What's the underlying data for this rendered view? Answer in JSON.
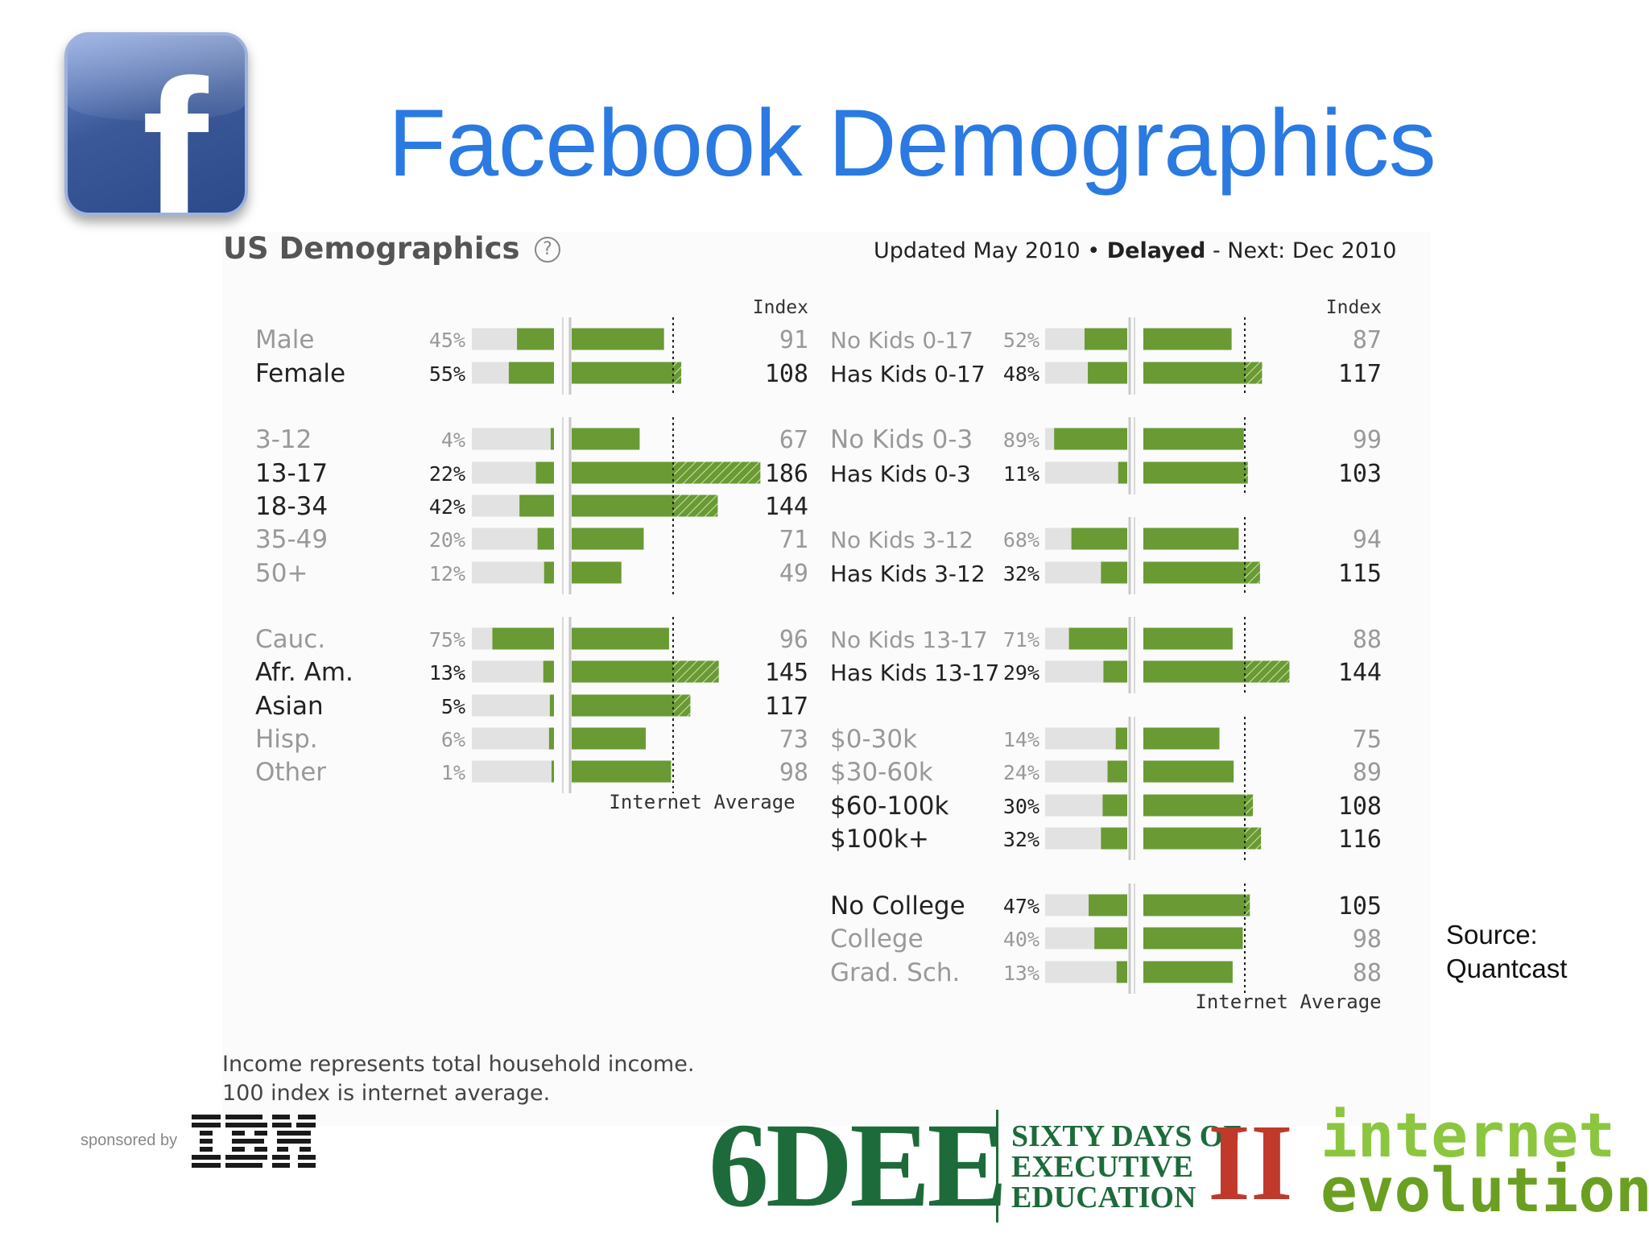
{
  "header": {
    "title": "Facebook Demographics",
    "logo_letter": "f",
    "logo_icon": "facebook-logo-icon"
  },
  "panel": {
    "title": "US Demographics",
    "help_icon": "question-circle-icon",
    "help_glyph": "?",
    "updated_prefix": "Updated May 2010 •",
    "updated_bold": "Delayed",
    "updated_suffix": "- Next: Dec 2010"
  },
  "labels": {
    "index": "Index",
    "internet_average": "Internet Average"
  },
  "colors": {
    "bar": "#6a9a33",
    "hatch": "#5a8a2a",
    "track": "#e2e2e2",
    "title": "#2a7ae2"
  },
  "chart_data": [
    {
      "type": "bar",
      "groups": [
        {
          "rows": [
            {
              "label": "Male",
              "pct": "45%",
              "index": 91,
              "emph": false
            },
            {
              "label": "Female",
              "pct": "55%",
              "index": 108,
              "emph": true
            }
          ]
        },
        {
          "rows": [
            {
              "label": "3-12",
              "pct": "4%",
              "index": 67,
              "emph": false
            },
            {
              "label": "13-17",
              "pct": "22%",
              "index": 186,
              "emph": true
            },
            {
              "label": "18-34",
              "pct": "42%",
              "index": 144,
              "emph": true
            },
            {
              "label": "35-49",
              "pct": "20%",
              "index": 71,
              "emph": false
            },
            {
              "label": "50+",
              "pct": "12%",
              "index": 49,
              "emph": false
            }
          ]
        },
        {
          "rows": [
            {
              "label": "Cauc.",
              "pct": "75%",
              "index": 96,
              "emph": false
            },
            {
              "label": "Afr. Am.",
              "pct": "13%",
              "index": 145,
              "emph": true
            },
            {
              "label": "Asian",
              "pct": "5%",
              "index": 117,
              "emph": true
            },
            {
              "label": "Hisp.",
              "pct": "6%",
              "index": 73,
              "emph": false
            },
            {
              "label": "Other",
              "pct": "1%",
              "index": 98,
              "emph": false
            }
          ]
        }
      ]
    },
    {
      "type": "bar",
      "groups": [
        {
          "rows": [
            {
              "label": "No Kids 0-17",
              "pct": "52%",
              "index": 87,
              "emph": false
            },
            {
              "label": "Has Kids 0-17",
              "pct": "48%",
              "index": 117,
              "emph": true
            }
          ]
        },
        {
          "rows": [
            {
              "label": "No Kids 0-3",
              "pct": "89%",
              "index": 99,
              "emph": false
            },
            {
              "label": "Has Kids 0-3",
              "pct": "11%",
              "index": 103,
              "emph": true
            }
          ]
        },
        {
          "rows": [
            {
              "label": "No Kids 3-12",
              "pct": "68%",
              "index": 94,
              "emph": false
            },
            {
              "label": "Has Kids 3-12",
              "pct": "32%",
              "index": 115,
              "emph": true
            }
          ]
        },
        {
          "rows": [
            {
              "label": "No Kids 13-17",
              "pct": "71%",
              "index": 88,
              "emph": false
            },
            {
              "label": "Has Kids 13-17",
              "pct": "29%",
              "index": 144,
              "emph": true
            }
          ]
        },
        {
          "rows": [
            {
              "label": "$0-30k",
              "pct": "14%",
              "index": 75,
              "emph": false
            },
            {
              "label": "$30-60k",
              "pct": "24%",
              "index": 89,
              "emph": false
            },
            {
              "label": "$60-100k",
              "pct": "30%",
              "index": 108,
              "emph": true
            },
            {
              "label": "$100k+",
              "pct": "32%",
              "index": 116,
              "emph": true
            }
          ]
        },
        {
          "rows": [
            {
              "label": "No College",
              "pct": "47%",
              "index": 105,
              "emph": true
            },
            {
              "label": "College",
              "pct": "40%",
              "index": 98,
              "emph": false
            },
            {
              "label": "Grad. Sch.",
              "pct": "13%",
              "index": 88,
              "emph": false
            }
          ]
        }
      ]
    }
  ],
  "source": {
    "line1": "Source:",
    "line2": "Quantcast"
  },
  "footnote": {
    "line1": "Income represents total household income.",
    "line2": "100 index is internet average."
  },
  "sponsor": {
    "text": "sponsored by",
    "logo": "IBM",
    "logo_icon": "ibm-logo-icon"
  },
  "brand_6dee": {
    "main": "6DEE",
    "line1": "SIXTY DAYS OF",
    "line2": "EXECUTIVE",
    "line3": "EDUCATION",
    "roman": "II"
  },
  "brand_ie": {
    "line1": "internet",
    "line2": "evolution"
  }
}
